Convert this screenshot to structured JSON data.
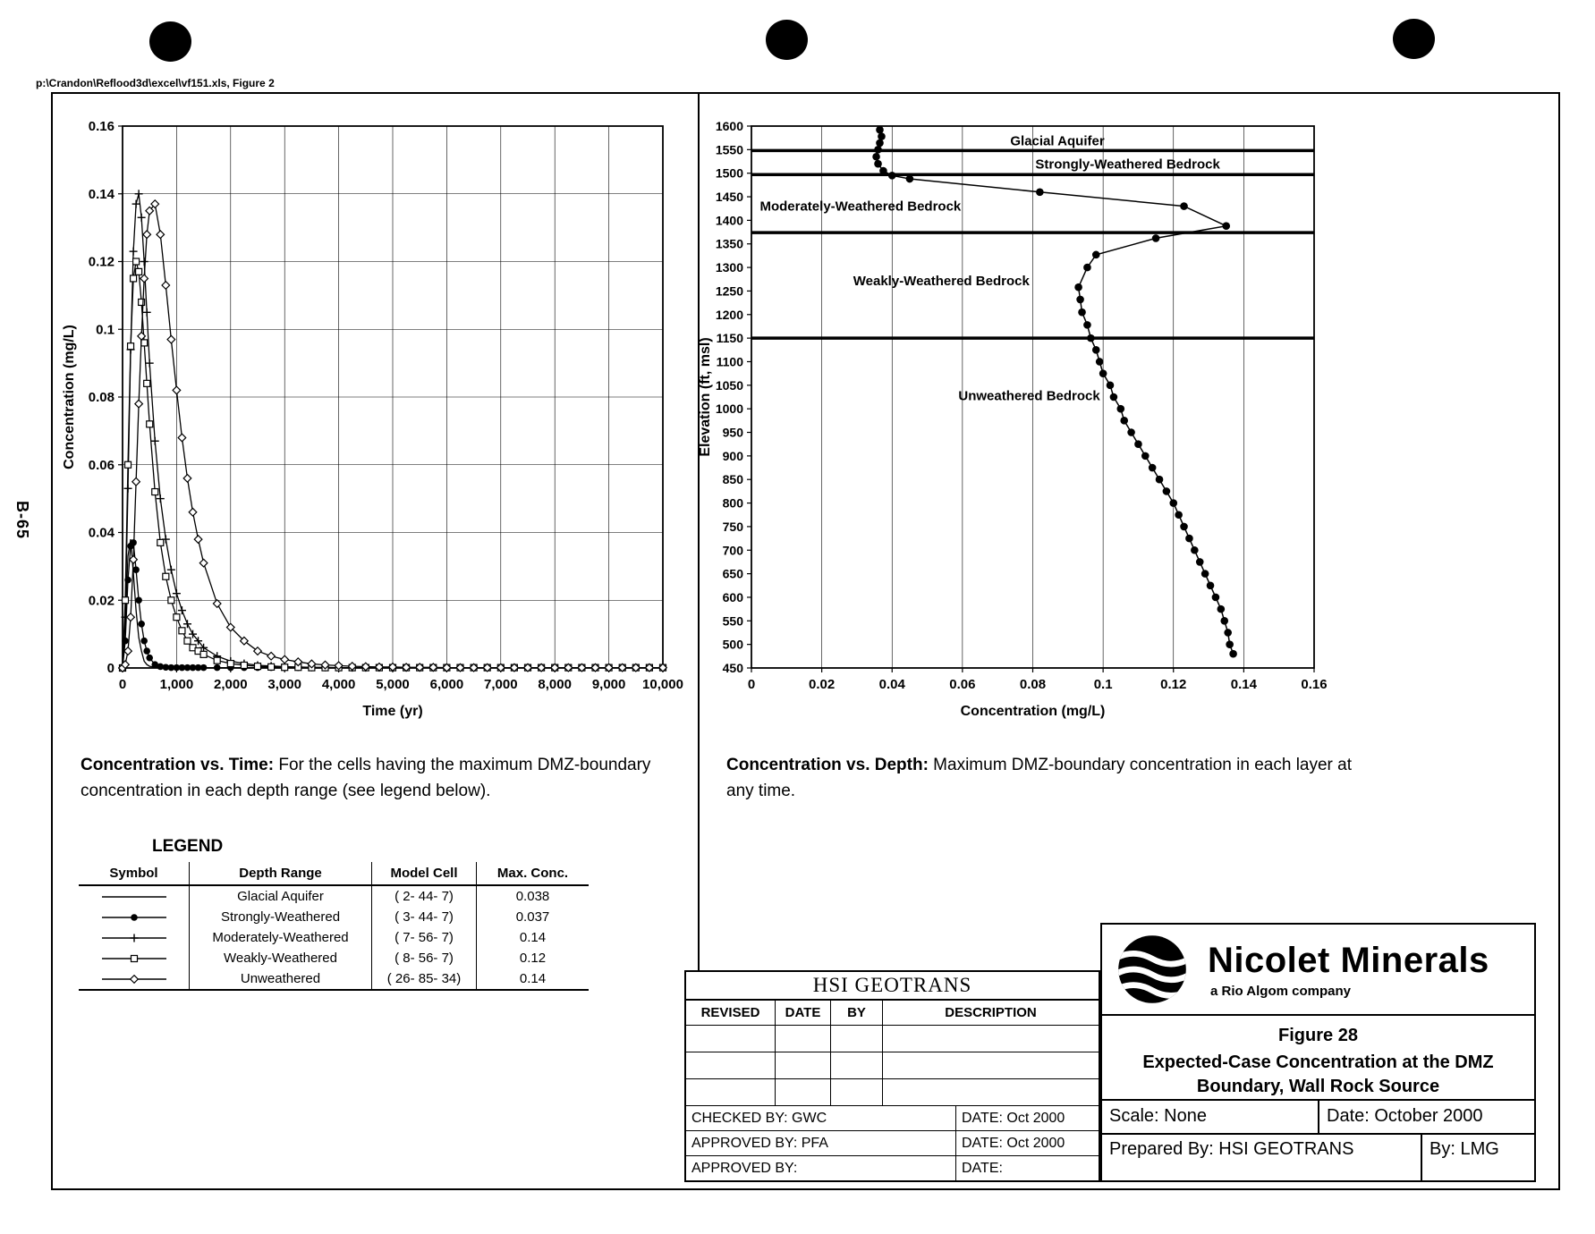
{
  "page": {
    "path_header": "p:\\Crandon\\Reflood3d\\excel\\vf151.xls, Figure 2",
    "side_label": "B-65"
  },
  "captions": {
    "left_bold": "Concentration vs. Time:",
    "left_rest": "  For the cells having the maximum DMZ-boundary concentration in each depth range (see legend below).",
    "right_bold": "Concentration vs. Depth:",
    "right_rest": "  Maximum DMZ-boundary concentration in each layer at any time."
  },
  "legend": {
    "title": "LEGEND",
    "headers": [
      "Symbol",
      "Depth Range",
      "Model Cell",
      "Max. Conc."
    ],
    "rows": [
      {
        "symbol": "line",
        "depth_range": "Glacial Aquifer",
        "model_cell": "( 2- 44-  7)",
        "max_conc": "0.038"
      },
      {
        "symbol": "circle",
        "depth_range": "Strongly-Weathered",
        "model_cell": "( 3- 44-  7)",
        "max_conc": "0.037"
      },
      {
        "symbol": "plus",
        "depth_range": "Moderately-Weathered",
        "model_cell": "( 7- 56-  7)",
        "max_conc": "0.14"
      },
      {
        "symbol": "square",
        "depth_range": "Weakly-Weathered",
        "model_cell": "( 8- 56-  7)",
        "max_conc": "0.12"
      },
      {
        "symbol": "diamond",
        "depth_range": "Unweathered",
        "model_cell": "( 26- 85- 34)",
        "max_conc": "0.14"
      }
    ]
  },
  "title_block": {
    "company": "HSI GEOTRANS",
    "columns": [
      "REVISED",
      "DATE",
      "BY",
      "DESCRIPTION"
    ],
    "checked_by": "CHECKED BY: GWC",
    "checked_date": "DATE:  Oct 2000",
    "approved_by_1": "APPROVED BY:  PFA",
    "approved_date_1": "DATE:  Oct 2000",
    "approved_by_2": "APPROVED BY:",
    "approved_date_2": "DATE:"
  },
  "brand_block": {
    "name": "Nicolet Minerals",
    "subtitle": "a Rio Algom company",
    "figure_no": "Figure 28",
    "figure_title_1": "Expected-Case Concentration at the DMZ",
    "figure_title_2": "Boundary, Wall Rock Source",
    "scale": "Scale:  None",
    "date": "Date: October 2000",
    "prepared_by": "Prepared By:  HSI GEOTRANS",
    "by": "By:  LMG"
  },
  "chart_data": [
    {
      "type": "line",
      "title": "Concentration vs. Time",
      "xlabel": "Time (yr)",
      "ylabel": "Concentration (mg/L)",
      "xlim": [
        0,
        10000
      ],
      "ylim": [
        0,
        0.16
      ],
      "grid": true,
      "xticks": [
        0,
        1000,
        2000,
        3000,
        4000,
        5000,
        6000,
        7000,
        8000,
        9000,
        10000
      ],
      "xtick_labels": [
        "0",
        "1,000",
        "2,000",
        "3,000",
        "4,000",
        "5,000",
        "6,000",
        "7,000",
        "8,000",
        "9,000",
        "10,000"
      ],
      "yticks": [
        0,
        0.02,
        0.04,
        0.06,
        0.08,
        0.1,
        0.12,
        0.14,
        0.16
      ],
      "ytick_labels": [
        "0",
        "0.02",
        "0.04",
        "0.06",
        "0.08",
        "0.1",
        "0.12",
        "0.14",
        "0.16"
      ],
      "x": [
        0,
        50,
        100,
        150,
        200,
        250,
        300,
        350,
        400,
        450,
        500,
        600,
        700,
        800,
        900,
        1000,
        1100,
        1200,
        1300,
        1400,
        1500,
        1750,
        2000,
        2250,
        2500,
        2750,
        3000,
        3250,
        3500,
        3750,
        4000,
        4250,
        4500,
        4750,
        5000,
        5250,
        5500,
        5750,
        6000,
        6250,
        6500,
        6750,
        7000,
        7250,
        7500,
        7750,
        8000,
        8250,
        8500,
        8750,
        9000,
        9250,
        9500,
        9750,
        10000
      ],
      "series": [
        {
          "name": "Glacial Aquifer",
          "marker": "none",
          "max_conc": 0.038,
          "y": [
            0,
            0.014,
            0.033,
            0.038,
            0.028,
            0.017,
            0.009,
            0.005,
            0.002,
            0.001,
            0.0005,
            0.0002,
            0.0001,
            0.0001,
            0.0001,
            0.0001,
            0.0001,
            0.0001,
            0.0001,
            0.0001,
            0.0001,
            0.0001,
            0.0001,
            0.0001,
            0.0001,
            0.0001,
            0.0001,
            0.0001,
            0.0001,
            0.0001,
            0.0001,
            0.0001,
            0.0001,
            0.0001,
            0.0001,
            0.0001,
            0.0001,
            0.0001,
            0.0001,
            0.0001,
            0.0001,
            0.0001,
            0.0001,
            0.0001,
            0.0001,
            0.0001,
            0.0001,
            0.0001,
            0.0001,
            0.0001,
            0.0001,
            0.0001,
            0.0001,
            0.0001,
            0.0001
          ]
        },
        {
          "name": "Strongly-Weathered",
          "marker": "circle",
          "max_conc": 0.037,
          "y": [
            0,
            0.008,
            0.026,
            0.036,
            0.037,
            0.029,
            0.02,
            0.013,
            0.008,
            0.005,
            0.003,
            0.001,
            0.0004,
            0.0002,
            0.0001,
            0.0001,
            0.0001,
            0.0001,
            0.0001,
            0.0001,
            0.0001,
            0.0001,
            0.0001,
            0.0001,
            0.0001,
            0.0001,
            0.0001,
            0.0001,
            0.0001,
            0.0001,
            0.0001,
            0.0001,
            0.0001,
            0.0001,
            0.0001,
            0.0001,
            0.0001,
            0.0001,
            0.0001,
            0.0001,
            0.0001,
            0.0001,
            0.0001,
            0.0001,
            0.0001,
            0.0001,
            0.0001,
            0.0001,
            0.0001,
            0.0001,
            0.0001,
            0.0001,
            0.0001,
            0.0001,
            0.0001
          ]
        },
        {
          "name": "Moderately-Weathered",
          "marker": "plus",
          "max_conc": 0.14,
          "y": [
            0,
            0.015,
            0.053,
            0.094,
            0.123,
            0.137,
            0.14,
            0.133,
            0.12,
            0.105,
            0.09,
            0.067,
            0.05,
            0.038,
            0.029,
            0.022,
            0.017,
            0.013,
            0.01,
            0.008,
            0.006,
            0.0035,
            0.002,
            0.0013,
            0.0008,
            0.0006,
            0.0004,
            0.0003,
            0.0002,
            0.0002,
            0.0001,
            0.0001,
            0.0001,
            0.0001,
            0.0001,
            0.0001,
            0.0001,
            0.0001,
            0.0001,
            0.0001,
            0.0001,
            0.0001,
            0.0001,
            0.0001,
            0.0001,
            0.0001,
            0.0001,
            0.0001,
            0.0001,
            0.0001,
            0.0001,
            0.0001,
            0.0001,
            0.0001,
            0.0001
          ]
        },
        {
          "name": "Weakly-Weathered",
          "marker": "square",
          "max_conc": 0.12,
          "y": [
            0,
            0.02,
            0.06,
            0.095,
            0.115,
            0.12,
            0.117,
            0.108,
            0.096,
            0.084,
            0.072,
            0.052,
            0.037,
            0.027,
            0.02,
            0.015,
            0.011,
            0.008,
            0.006,
            0.005,
            0.004,
            0.0022,
            0.0013,
            0.0008,
            0.0005,
            0.0003,
            0.0002,
            0.0002,
            0.0001,
            0.0001,
            0.0001,
            0.0001,
            0.0001,
            0.0001,
            0.0001,
            0.0001,
            0.0001,
            0.0001,
            0.0001,
            0.0001,
            0.0001,
            0.0001,
            0.0001,
            0.0001,
            0.0001,
            0.0001,
            0.0001,
            0.0001,
            0.0001,
            0.0001,
            0.0001,
            0.0001,
            0.0001,
            0.0001,
            0.0001
          ]
        },
        {
          "name": "Unweathered",
          "marker": "diamond",
          "max_conc": 0.14,
          "y": [
            0,
            0.001,
            0.005,
            0.015,
            0.032,
            0.055,
            0.078,
            0.098,
            0.115,
            0.128,
            0.135,
            0.137,
            0.128,
            0.113,
            0.097,
            0.082,
            0.068,
            0.056,
            0.046,
            0.038,
            0.031,
            0.019,
            0.012,
            0.008,
            0.005,
            0.0035,
            0.0025,
            0.0018,
            0.0012,
            0.0009,
            0.0007,
            0.0005,
            0.0004,
            0.0003,
            0.0003,
            0.0002,
            0.0002,
            0.0002,
            0.0001,
            0.0001,
            0.0001,
            0.0001,
            0.0001,
            0.0001,
            0.0001,
            0.0001,
            0.0001,
            0.0001,
            0.0001,
            0.0001,
            0.0001,
            0.0001,
            0.0001,
            0.0001,
            0.0001
          ]
        }
      ]
    },
    {
      "type": "line",
      "title": "Concentration vs. Depth",
      "xlabel": "Concentration (mg/L)",
      "ylabel": "Elevation (ft, msl)",
      "xlim": [
        0,
        0.16
      ],
      "ylim": [
        450,
        1600
      ],
      "grid": "vertical-only",
      "xticks": [
        0,
        0.02,
        0.04,
        0.06,
        0.08,
        0.1,
        0.12,
        0.14,
        0.16
      ],
      "xtick_labels": [
        "0",
        "0.02",
        "0.04",
        "0.06",
        "0.08",
        "0.1",
        "0.12",
        "0.14",
        "0.16"
      ],
      "yticks": [
        1600,
        1550,
        1500,
        1450,
        1400,
        1350,
        1300,
        1250,
        1200,
        1150,
        1100,
        1050,
        1000,
        950,
        900,
        850,
        800,
        750,
        700,
        650,
        600,
        550,
        500,
        450
      ],
      "ytick_labels": [
        "1600",
        "1550",
        "1500",
        "1450",
        "1400",
        "1350",
        "1300",
        "1250",
        "1200",
        "1150",
        "1100",
        "1050",
        "1000",
        "950",
        "900",
        "850",
        "800",
        "750",
        "700",
        "650",
        "600",
        "550",
        "500",
        "450"
      ],
      "boundary_lines": [
        1548,
        1497,
        1374,
        1150
      ],
      "annotations": [
        {
          "text": "Glacial Aquifer",
          "x": 0.087,
          "y": 1569
        },
        {
          "text": "Strongly-Weathered Bedrock",
          "x": 0.107,
          "y": 1519
        },
        {
          "text": "Moderately-Weathered Bedrock",
          "x": 0.031,
          "y": 1430
        },
        {
          "text": "Weakly-Weathered Bedrock",
          "x": 0.054,
          "y": 1272
        },
        {
          "text": "Unweathered Bedrock",
          "x": 0.079,
          "y": 1028
        }
      ],
      "series": [
        {
          "name": "Maximum DMZ-boundary concentration",
          "marker": "circle",
          "x": [
            0.0365,
            0.037,
            0.0365,
            0.036,
            0.0355,
            0.036,
            0.0375,
            0.04,
            0.045,
            0.082,
            0.123,
            0.135,
            0.115,
            0.098,
            0.0955,
            0.093,
            0.0935,
            0.094,
            0.0955,
            0.0965,
            0.098,
            0.099,
            0.1,
            0.102,
            0.103,
            0.105,
            0.106,
            0.108,
            0.11,
            0.112,
            0.114,
            0.116,
            0.118,
            0.12,
            0.1215,
            0.123,
            0.1245,
            0.126,
            0.1275,
            0.129,
            0.1305,
            0.132,
            0.1335,
            0.1345,
            0.1355,
            0.136,
            0.137
          ],
          "y": [
            1592,
            1578,
            1564,
            1550,
            1535,
            1520,
            1505,
            1495,
            1488,
            1460,
            1430,
            1388,
            1362,
            1327,
            1300,
            1258,
            1232,
            1205,
            1178,
            1150,
            1125,
            1100,
            1075,
            1050,
            1025,
            1000,
            975,
            950,
            925,
            900,
            875,
            850,
            825,
            800,
            775,
            750,
            725,
            700,
            675,
            650,
            625,
            600,
            575,
            550,
            525,
            500,
            480
          ]
        }
      ]
    }
  ]
}
